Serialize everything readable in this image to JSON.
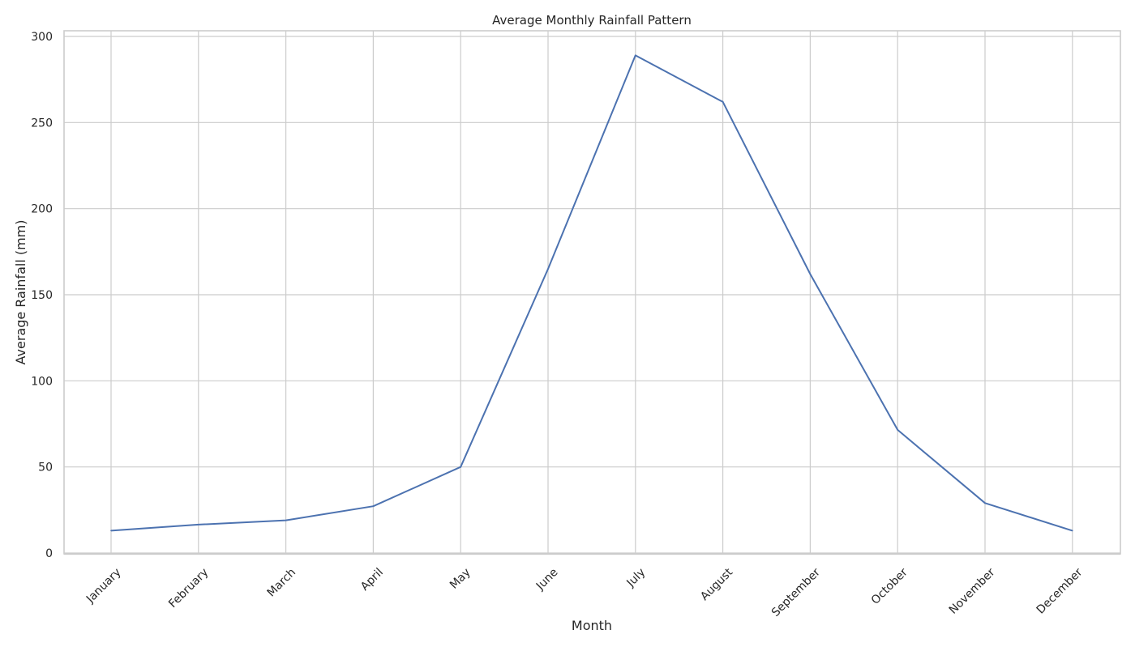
{
  "chart_data": {
    "type": "line",
    "title": "Average Monthly Rainfall Pattern",
    "xlabel": "Month",
    "ylabel": "Average Rainfall (mm)",
    "categories": [
      "January",
      "February",
      "March",
      "April",
      "May",
      "June",
      "July",
      "August",
      "September",
      "October",
      "November",
      "December"
    ],
    "series": [
      {
        "values": [
          13,
          16.5,
          19,
          27.2,
          50,
          165,
          289,
          262,
          162,
          71.5,
          29,
          13
        ],
        "color": "#4c72b0"
      }
    ],
    "ylim": [
      0,
      300
    ],
    "yticks": [
      0,
      50,
      100,
      150,
      200,
      250,
      300
    ],
    "grid": true,
    "legend": "none"
  }
}
